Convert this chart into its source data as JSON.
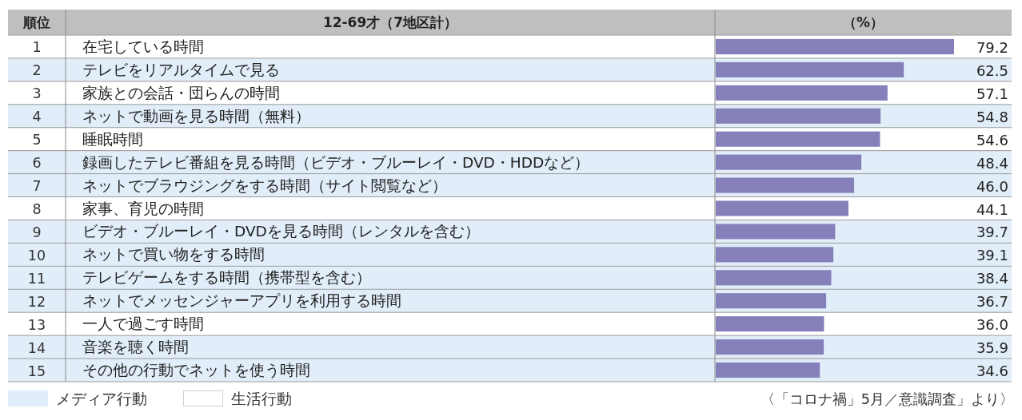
{
  "chart_data": {
    "type": "bar",
    "orientation": "horizontal",
    "ylabel": "12-69才（7地区計）",
    "xlabel": "（%）",
    "y2label": "順位",
    "color": "#8580ba",
    "categories": [
      "在宅している時間",
      "テレビをリアルタイムで見る",
      "家族との会話・団らんの時間",
      "ネットで動画を見る時間（無料）",
      "睡眠時間",
      "録画したテレビ番組を見る時間（ビデオ・ブルーレイ・DVD・HDDなど）",
      "ネットでブラウジングをする時間（サイト閲覧など）",
      "家事、育児の時間",
      "ビデオ・ブルーレイ・DVDを見る時間（レンタルを含む）",
      "ネットで買い物をする時間",
      "テレビゲームをする時間（携帯型を含む）",
      "ネットでメッセンジャーアプリを利用する時間",
      "一人で過ごす時間",
      "音楽を聴く時間",
      "その他の行動でネットを使う時間"
    ],
    "y2_categories": [
      "1",
      "2",
      "3",
      "4",
      "5",
      "6",
      "7",
      "8",
      "9",
      "10",
      "11",
      "12",
      "13",
      "14",
      "15"
    ],
    "values": [
      79.2,
      62.5,
      57.1,
      54.8,
      54.6,
      48.4,
      46.0,
      44.1,
      39.7,
      39.1,
      38.4,
      36.7,
      36.0,
      35.9,
      34.6
    ],
    "value_labels": [
      "79.2",
      "62.5",
      "57.1",
      "54.8",
      "54.6",
      "48.4",
      "46.0",
      "44.1",
      "39.7",
      "39.1",
      "38.4",
      "36.7",
      "36.0",
      "35.9",
      "34.6"
    ],
    "bands": [
      {
        "axis": "y",
        "from": "テレビをリアルタイムで見る",
        "to": "テレビをリアルタイムで見る",
        "label": "メディア行動",
        "color": "#e1edf8"
      },
      {
        "axis": "y",
        "from": "ネットで動画を見る時間（無料）",
        "to": "ネットで動画を見る時間（無料）",
        "color": "#e1edf8"
      },
      {
        "axis": "y",
        "from": "録画したテレビ番組を見る時間（ビデオ・ブルーレイ・DVD・HDDなど）",
        "to": "ネットでブラウジングをする時間（サイト閲覧など）",
        "color": "#e1edf8"
      },
      {
        "axis": "y",
        "from": "ビデオ・ブルーレイ・DVDを見る時間（レンタルを含む）",
        "to": "ネットでメッセンジャーアプリを利用する時間",
        "color": "#e1edf8"
      },
      {
        "axis": "y",
        "from": "音楽を聴く時間",
        "to": "その他の行動でネットを使う時間",
        "color": "#e1edf8"
      }
    ],
    "legend": "bottom left",
    "annotations": [
      "生活行動",
      "〈「コロナ禍」5月／意識調査」より〉"
    ]
  }
}
